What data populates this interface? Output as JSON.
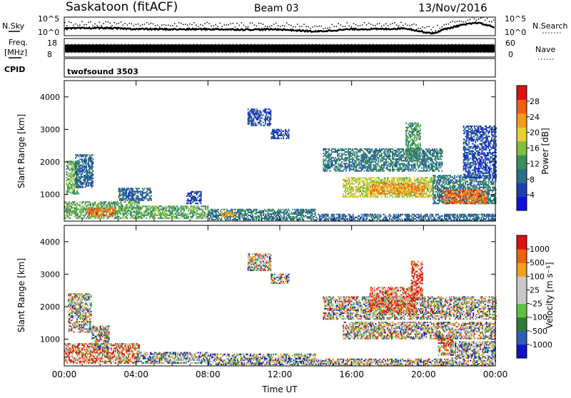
{
  "header": {
    "station": "Saskatoon (fitACF)",
    "beam": "Beam 03",
    "date": "13/Nov/2016"
  },
  "strips": {
    "nsky_label": "N.Sky",
    "nsky_ticks": [
      "10^5",
      "10^0"
    ],
    "nsearch_label": "N.Search",
    "nsearch_ticks": [
      "10^5",
      "10^0"
    ],
    "freq_label_line1": "Freq.",
    "freq_label_line2": "[MHz]",
    "freq_ticks": [
      "18",
      "8"
    ],
    "nave_label": "Nave",
    "nave_ticks": [
      "60",
      "0"
    ],
    "cpid_label": "CPID",
    "cpid_value": "twofsound 3503"
  },
  "colors": {
    "power_scale": [
      "#1010e0",
      "#1e3fb0",
      "#2a6f8a",
      "#3a8f5a",
      "#7fc040",
      "#e8d030",
      "#f59a20",
      "#f06010",
      "#e01010"
    ],
    "velocity_scale": [
      "#1010c8",
      "#2a5fb0",
      "#2e7a3a",
      "#60c040",
      "#c8c8c8",
      "#c8c8c8",
      "#f0a020",
      "#f06010",
      "#e01010"
    ]
  },
  "chart_data": [
    {
      "type": "heatmap",
      "name": "power-panel",
      "ylabel": "Slant Range [km]",
      "yticks": [
        "4000",
        "3000",
        "2000",
        "1000"
      ],
      "ylim": [
        180,
        4500
      ],
      "xlim": [
        0,
        24
      ],
      "colorbar_label": "Power [dB]",
      "colorbar_ticks": [
        "28",
        "24",
        "20",
        "16",
        "12",
        "8",
        "4"
      ],
      "colorbar_range": [
        0,
        32
      ],
      "regions": [
        {
          "t0": 0.0,
          "t1": 4.2,
          "r0": 250,
          "r1": 750,
          "v": 14
        },
        {
          "t0": 1.3,
          "t1": 2.8,
          "r0": 320,
          "r1": 580,
          "v": 26
        },
        {
          "t0": 0.1,
          "t1": 0.8,
          "r0": 1000,
          "r1": 2000,
          "v": 14
        },
        {
          "t0": 0.6,
          "t1": 1.6,
          "r0": 1200,
          "r1": 2200,
          "v": 8
        },
        {
          "t0": 3.0,
          "t1": 4.8,
          "r0": 800,
          "r1": 1200,
          "v": 8
        },
        {
          "t0": 4.0,
          "t1": 8.0,
          "r0": 250,
          "r1": 650,
          "v": 14
        },
        {
          "t0": 8.0,
          "t1": 14.0,
          "r0": 200,
          "r1": 550,
          "v": 10
        },
        {
          "t0": 8.7,
          "t1": 9.5,
          "r0": 300,
          "r1": 480,
          "v": 24
        },
        {
          "t0": 6.8,
          "t1": 7.6,
          "r0": 700,
          "r1": 1100,
          "v": 6
        },
        {
          "t0": 10.2,
          "t1": 11.5,
          "r0": 3100,
          "r1": 3600,
          "v": 6
        },
        {
          "t0": 11.5,
          "t1": 12.5,
          "r0": 2700,
          "r1": 3000,
          "v": 6
        },
        {
          "t0": 14.4,
          "t1": 21.0,
          "r0": 1700,
          "r1": 2400,
          "v": 10
        },
        {
          "t0": 15.5,
          "t1": 20.5,
          "r0": 900,
          "r1": 1500,
          "v": 18
        },
        {
          "t0": 17.0,
          "t1": 20.0,
          "r0": 1000,
          "r1": 1350,
          "v": 24
        },
        {
          "t0": 19.0,
          "t1": 19.8,
          "r0": 2000,
          "r1": 3200,
          "v": 12
        },
        {
          "t0": 20.5,
          "t1": 24.0,
          "r0": 700,
          "r1": 1600,
          "v": 10
        },
        {
          "t0": 21.0,
          "t1": 23.5,
          "r0": 700,
          "r1": 1150,
          "v": 26
        },
        {
          "t0": 22.2,
          "t1": 24.0,
          "r0": 1500,
          "r1": 3100,
          "v": 6
        },
        {
          "t0": 14.0,
          "t1": 24.0,
          "r0": 180,
          "r1": 400,
          "v": 8
        }
      ]
    },
    {
      "type": "heatmap",
      "name": "velocity-panel",
      "ylabel": "Slant Range [km]",
      "yticks": [
        "4000",
        "3000",
        "2000",
        "1000"
      ],
      "ylim": [
        180,
        4500
      ],
      "xlim": [
        0,
        24
      ],
      "xticks": [
        "00:00",
        "04:00",
        "08:00",
        "12:00",
        "16:00",
        "20:00",
        "00:00"
      ],
      "xlabel": "Time UT",
      "colorbar_label": "Velocity [m s⁻¹]",
      "colorbar_ticks": [
        "1000",
        "500",
        "100",
        "25",
        "-25",
        "-100",
        "-500",
        "-1000"
      ],
      "colorbar_range": [
        0,
        9
      ],
      "regions": [
        {
          "t0": 0.0,
          "t1": 4.2,
          "r0": 250,
          "r1": 850,
          "v": 6.5
        },
        {
          "t0": 0.2,
          "t1": 1.5,
          "r0": 1200,
          "r1": 2400,
          "v": 4.5
        },
        {
          "t0": 1.5,
          "t1": 2.5,
          "r0": 700,
          "r1": 1400,
          "v": 4.5
        },
        {
          "t0": 4.0,
          "t1": 8.0,
          "r0": 250,
          "r1": 600,
          "v": 3.5
        },
        {
          "t0": 8.0,
          "t1": 14.0,
          "r0": 200,
          "r1": 550,
          "v": 3.5
        },
        {
          "t0": 10.2,
          "t1": 11.5,
          "r0": 3100,
          "r1": 3600,
          "v": 4.5
        },
        {
          "t0": 11.5,
          "t1": 12.5,
          "r0": 2700,
          "r1": 3000,
          "v": 4.5
        },
        {
          "t0": 14.4,
          "t1": 24.0,
          "r0": 1600,
          "r1": 2300,
          "v": 4.5
        },
        {
          "t0": 15.5,
          "t1": 24.0,
          "r0": 1000,
          "r1": 1500,
          "v": 4.5
        },
        {
          "t0": 17.0,
          "t1": 19.5,
          "r0": 1800,
          "r1": 2600,
          "v": 7.5
        },
        {
          "t0": 19.3,
          "t1": 19.9,
          "r0": 2200,
          "r1": 3400,
          "v": 8.5
        },
        {
          "t0": 20.8,
          "t1": 21.6,
          "r0": 500,
          "r1": 1000,
          "v": 6.5
        },
        {
          "t0": 21.5,
          "t1": 24.0,
          "r0": 400,
          "r1": 900,
          "v": 3.5
        },
        {
          "t0": 14.0,
          "t1": 24.0,
          "r0": 180,
          "r1": 400,
          "v": 4.5
        }
      ]
    },
    {
      "type": "line",
      "name": "nsky-strip",
      "xlim": [
        0,
        24
      ],
      "x": [
        0,
        2,
        4,
        6,
        8,
        10,
        12,
        14,
        16,
        18,
        19,
        20,
        20.6,
        21,
        22,
        23,
        24
      ],
      "y": [
        0.38,
        0.42,
        0.36,
        0.34,
        0.35,
        0.33,
        0.34,
        0.22,
        0.35,
        0.36,
        0.4,
        0.2,
        0.12,
        0.3,
        0.55,
        0.7,
        0.45
      ]
    },
    {
      "type": "bar",
      "name": "freq-strip",
      "xlim": [
        0,
        24
      ],
      "band": [
        0.25,
        0.68
      ]
    }
  ]
}
